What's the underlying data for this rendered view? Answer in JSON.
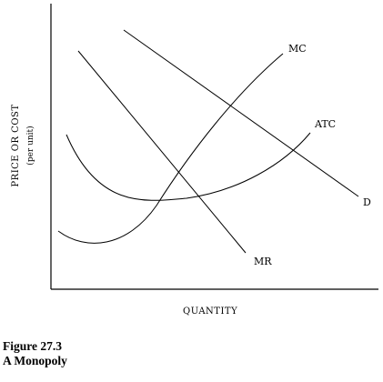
{
  "figure": {
    "curves": {
      "mc": "MC",
      "atc": "ATC",
      "d": "D",
      "mr": "MR"
    },
    "x_axis_label": "QUANTITY",
    "y_axis_label": "PRICE OR COST",
    "y_axis_sublabel": "(per unit)",
    "caption_number": "Figure 27.3",
    "caption_title": "A Monopoly"
  }
}
